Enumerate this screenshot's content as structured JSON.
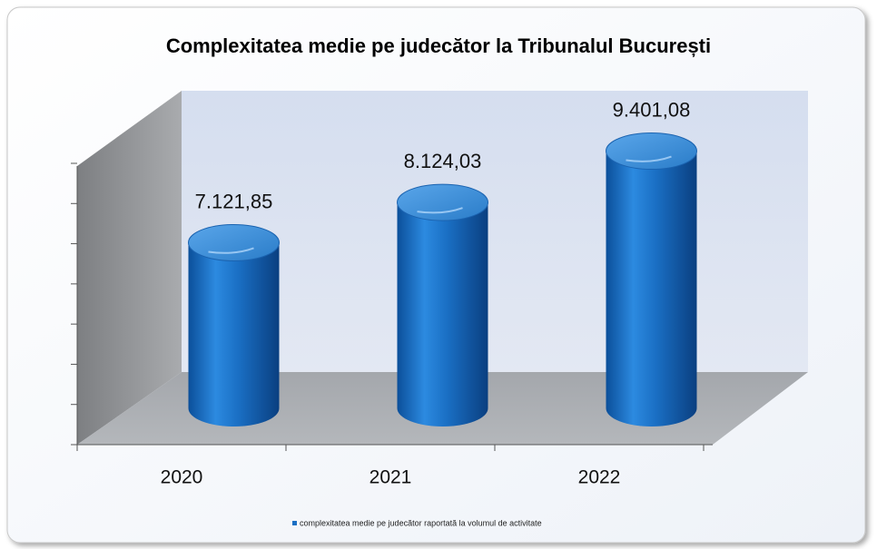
{
  "chart_data": {
    "type": "cylinder",
    "title": "Complexitatea medie pe judecător la Tribunalul București",
    "categories": [
      "2020",
      "2021",
      "2022"
    ],
    "series": [
      {
        "name": "complexitatea medie pe judecător raportată la volumul de activitate",
        "color": "#1a6fc4",
        "values": [
          7121.85,
          8124.03,
          9401.08
        ],
        "value_labels": [
          "7.121,85",
          "8.124,03",
          "9.401,08"
        ]
      }
    ],
    "ylim": [
      3000,
      10000
    ],
    "yticks": [
      3000,
      4000,
      5000,
      6000,
      7000,
      8000,
      9000,
      10000
    ],
    "legend": "bottom"
  }
}
